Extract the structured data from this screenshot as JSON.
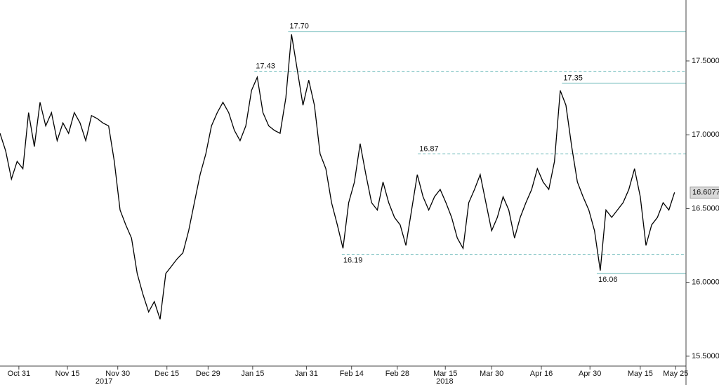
{
  "chart_data": {
    "type": "line",
    "x": [
      0,
      1,
      2,
      3,
      4,
      5,
      6,
      7,
      8,
      9,
      10,
      11,
      12,
      13,
      14,
      15,
      16,
      17,
      18,
      19,
      20,
      21,
      22,
      23,
      24,
      25,
      26,
      27,
      28,
      29,
      30,
      31,
      32,
      33,
      34,
      35,
      36,
      37,
      38,
      39,
      40,
      41,
      42,
      43,
      44,
      45,
      46,
      47,
      48,
      49,
      50,
      51,
      52,
      53,
      54,
      55,
      56,
      57,
      58,
      59,
      60,
      61,
      62,
      63,
      64,
      65,
      66,
      67,
      68,
      69,
      70,
      71,
      72,
      73,
      74,
      75,
      76,
      77,
      78,
      79,
      80,
      81,
      82,
      83,
      84,
      85,
      86,
      87,
      88,
      89,
      90,
      91,
      92,
      93,
      94,
      95,
      96,
      97,
      98,
      99,
      100,
      101,
      102,
      103,
      104,
      105,
      106,
      107,
      108,
      109,
      110,
      111,
      112,
      113,
      114,
      115,
      116,
      117,
      118
    ],
    "series": [
      {
        "color": "#000000",
        "values": [
          17.01,
          16.89,
          16.7,
          16.82,
          16.77,
          17.15,
          16.92,
          17.22,
          17.06,
          17.15,
          16.96,
          17.08,
          17.01,
          17.15,
          17.08,
          16.96,
          17.13,
          17.11,
          17.08,
          17.06,
          16.82,
          16.49,
          16.39,
          16.3,
          16.06,
          15.92,
          15.8,
          15.87,
          15.75,
          16.06,
          16.11,
          16.16,
          16.2,
          16.35,
          16.54,
          16.73,
          16.87,
          17.06,
          17.15,
          17.22,
          17.15,
          17.03,
          16.96,
          17.06,
          17.3,
          17.39,
          17.15,
          17.06,
          17.03,
          17.01,
          17.25,
          17.68,
          17.44,
          17.2,
          17.37,
          17.2,
          16.87,
          16.77,
          16.54,
          16.39,
          16.23,
          16.54,
          16.68,
          16.94,
          16.73,
          16.54,
          16.49,
          16.68,
          16.54,
          16.44,
          16.39,
          16.25,
          16.49,
          16.73,
          16.58,
          16.49,
          16.58,
          16.63,
          16.54,
          16.44,
          16.3,
          16.23,
          16.54,
          16.63,
          16.73,
          16.54,
          16.35,
          16.44,
          16.58,
          16.49,
          16.3,
          16.44,
          16.54,
          16.63,
          16.77,
          16.68,
          16.63,
          16.82,
          17.3,
          17.2,
          16.92,
          16.68,
          16.58,
          16.49,
          16.35,
          16.08,
          16.49,
          16.44,
          16.49,
          16.54,
          16.63,
          16.77,
          16.58,
          16.25,
          16.39,
          16.44,
          16.54,
          16.49,
          16.61
        ]
      }
    ],
    "xlim": [
      0,
      120
    ],
    "ylim": [
      15.433,
      17.913
    ],
    "yticks": [
      {
        "value": 15.5,
        "label": "15.5000"
      },
      {
        "value": 16,
        "label": "16.0000"
      },
      {
        "value": 16.5,
        "label": "16.5000"
      },
      {
        "value": 17,
        "label": "17.0000"
      },
      {
        "value": 17.5,
        "label": "17.5000"
      }
    ],
    "xticks": [
      {
        "value": 3.3,
        "label": "Oct 31"
      },
      {
        "value": 11.8,
        "label": "Nov 15"
      },
      {
        "value": 20.6,
        "label": "Nov 30"
      },
      {
        "value": 29.2,
        "label": "Dec 15"
      },
      {
        "value": 36.4,
        "label": "Dec 29"
      },
      {
        "value": 44.2,
        "label": "Jan 15"
      },
      {
        "value": 53.6,
        "label": "Jan 31"
      },
      {
        "value": 61.5,
        "label": "Feb 14"
      },
      {
        "value": 69.5,
        "label": "Feb 28"
      },
      {
        "value": 77.9,
        "label": "Mar 15"
      },
      {
        "value": 86,
        "label": "Mar 30"
      },
      {
        "value": 94.7,
        "label": "Apr 16"
      },
      {
        "value": 103.2,
        "label": "Apr 30"
      },
      {
        "value": 112,
        "label": "May 15"
      },
      {
        "value": 118.2,
        "label": "May 25"
      }
    ],
    "year_labels": [
      {
        "value": 18.2,
        "label": "2017"
      },
      {
        "value": 77.8,
        "label": "2018"
      }
    ],
    "last_price": {
      "value": 16.6077,
      "label": "16.6077"
    },
    "annotations": [
      {
        "value": 17.7,
        "label": "17.70",
        "x": 50.4,
        "style": "solid",
        "position": "above"
      },
      {
        "value": 17.43,
        "label": "17.43",
        "x": 44.5,
        "style": "dashed",
        "position": "above"
      },
      {
        "value": 17.35,
        "label": "17.35",
        "x": 98.3,
        "style": "solid",
        "position": "above"
      },
      {
        "value": 16.87,
        "label": "16.87",
        "x": 73.1,
        "style": "dashed",
        "position": "above"
      },
      {
        "value": 16.19,
        "label": "16.19",
        "x": 59.8,
        "style": "dashed",
        "position": "below"
      },
      {
        "value": 16.06,
        "label": "16.06",
        "x": 104.4,
        "style": "solid",
        "position": "below"
      }
    ],
    "line_color": "#5fb3b3"
  }
}
